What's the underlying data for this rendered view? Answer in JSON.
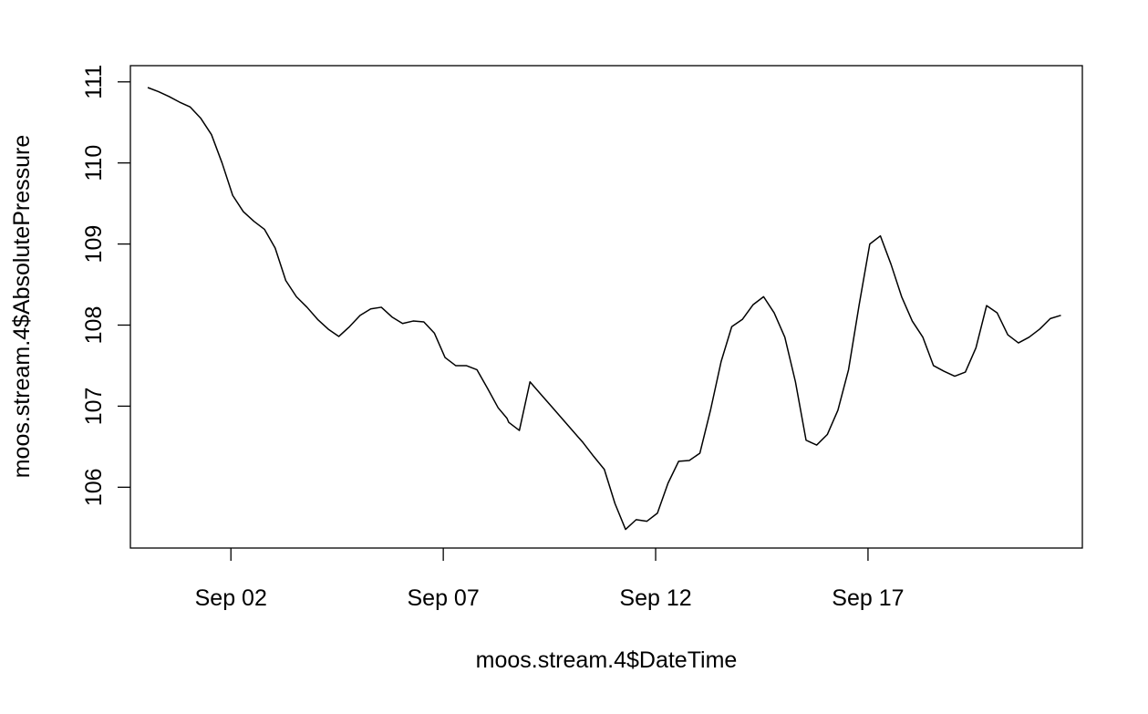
{
  "chart_data": {
    "type": "line",
    "title": "",
    "xlabel": "moos.stream.4$DateTime",
    "ylabel": "moos.stream.4$AbsolutePressure",
    "xlim": [
      "2013-08-30T15:12:00",
      "2013-09-22T01:07:00"
    ],
    "ylim": [
      105.25,
      111.2
    ],
    "x_ticks": [
      "2013-09-02",
      "2013-09-07",
      "2013-09-12",
      "2013-09-17"
    ],
    "x_tick_labels": [
      "Sep 02",
      "Sep 07",
      "Sep 12",
      "Sep 17"
    ],
    "y_ticks": [
      106,
      107,
      108,
      109,
      110,
      111
    ],
    "y_tick_labels": [
      "106",
      "107",
      "108",
      "109",
      "110",
      "111"
    ],
    "grid": false,
    "legend": "none",
    "line_color": "#000000",
    "series": [
      {
        "x": [
          "2013-08-31T01:00:00",
          "2013-08-31T07:00:00",
          "2013-08-31T13:00:00",
          "2013-08-31T19:00:00",
          "2013-09-01T01:00:00",
          "2013-09-01T07:00:00",
          "2013-09-01T13:00:00",
          "2013-09-01T19:00:00",
          "2013-09-02T01:00:00",
          "2013-09-02T07:00:00",
          "2013-09-02T13:00:00",
          "2013-09-02T19:00:00",
          "2013-09-03T01:00:00",
          "2013-09-03T07:00:00",
          "2013-09-03T13:00:00",
          "2013-09-03T19:00:00",
          "2013-09-04T01:00:00",
          "2013-09-04T07:00:00",
          "2013-09-04T13:00:00",
          "2013-09-04T19:00:00",
          "2013-09-05T01:00:00",
          "2013-09-05T07:00:00",
          "2013-09-05T13:00:00",
          "2013-09-05T19:00:00",
          "2013-09-06T01:00:00",
          "2013-09-06T07:00:00",
          "2013-09-06T13:00:00",
          "2013-09-06T19:00:00",
          "2013-09-07T01:00:00",
          "2013-09-07T07:00:00",
          "2013-09-07T13:00:00",
          "2013-09-07T19:00:00",
          "2013-09-08T01:00:00",
          "2013-09-08T07:00:00",
          "2013-09-08T12:00:00",
          "2013-09-08T13:00:00",
          "2013-09-08T19:00:00",
          "2013-09-09T01:00:00",
          "2013-09-09T07:00:00",
          "2013-09-09T13:00:00",
          "2013-09-09T19:00:00",
          "2013-09-10T01:00:00",
          "2013-09-10T07:00:00",
          "2013-09-10T13:00:00",
          "2013-09-10T19:00:00",
          "2013-09-11T01:00:00",
          "2013-09-11T07:00:00",
          "2013-09-11T13:00:00",
          "2013-09-11T19:00:00",
          "2013-09-12T01:00:00",
          "2013-09-12T07:00:00",
          "2013-09-12T13:00:00",
          "2013-09-12T19:00:00",
          "2013-09-13T01:00:00",
          "2013-09-13T07:00:00",
          "2013-09-13T13:00:00",
          "2013-09-13T19:00:00",
          "2013-09-14T01:00:00",
          "2013-09-14T07:00:00",
          "2013-09-14T13:00:00",
          "2013-09-14T19:00:00",
          "2013-09-15T01:00:00",
          "2013-09-15T07:00:00",
          "2013-09-15T13:00:00",
          "2013-09-15T19:00:00",
          "2013-09-16T01:00:00",
          "2013-09-16T07:00:00",
          "2013-09-16T13:00:00",
          "2013-09-16T19:00:00",
          "2013-09-17T01:00:00",
          "2013-09-17T07:00:00",
          "2013-09-17T13:00:00",
          "2013-09-17T19:00:00",
          "2013-09-18T01:00:00",
          "2013-09-18T07:00:00",
          "2013-09-18T13:00:00",
          "2013-09-18T19:00:00",
          "2013-09-19T01:00:00",
          "2013-09-19T07:00:00",
          "2013-09-19T13:00:00",
          "2013-09-19T19:00:00",
          "2013-09-20T01:00:00",
          "2013-09-20T07:00:00",
          "2013-09-20T13:00:00",
          "2013-09-20T19:00:00",
          "2013-09-21T01:00:00",
          "2013-09-21T07:00:00",
          "2013-09-21T13:00:00"
        ],
        "y": [
          110.93,
          110.88,
          110.82,
          110.75,
          110.69,
          110.55,
          110.35,
          110.0,
          109.6,
          109.4,
          109.28,
          109.18,
          108.95,
          108.55,
          108.35,
          108.22,
          108.07,
          107.95,
          107.86,
          107.98,
          108.12,
          108.2,
          108.22,
          108.1,
          108.02,
          108.05,
          108.04,
          107.9,
          107.6,
          107.5,
          107.5,
          107.45,
          107.22,
          106.98,
          106.85,
          106.8,
          106.7,
          107.3,
          107.15,
          107.0,
          106.85,
          106.7,
          106.55,
          106.38,
          106.22,
          105.8,
          105.48,
          105.6,
          105.58,
          105.68,
          106.05,
          106.32,
          106.33,
          106.42,
          106.95,
          107.55,
          107.98,
          108.07,
          108.25,
          108.35,
          108.15,
          107.85,
          107.3,
          106.58,
          106.52,
          106.65,
          106.95,
          107.45,
          108.25,
          109.0,
          109.1,
          108.75,
          108.35,
          108.05,
          107.85,
          107.5,
          107.43,
          107.37,
          107.42,
          107.72,
          108.24,
          108.15,
          107.88,
          107.78,
          107.85,
          107.95,
          108.08,
          108.12
        ]
      }
    ]
  }
}
